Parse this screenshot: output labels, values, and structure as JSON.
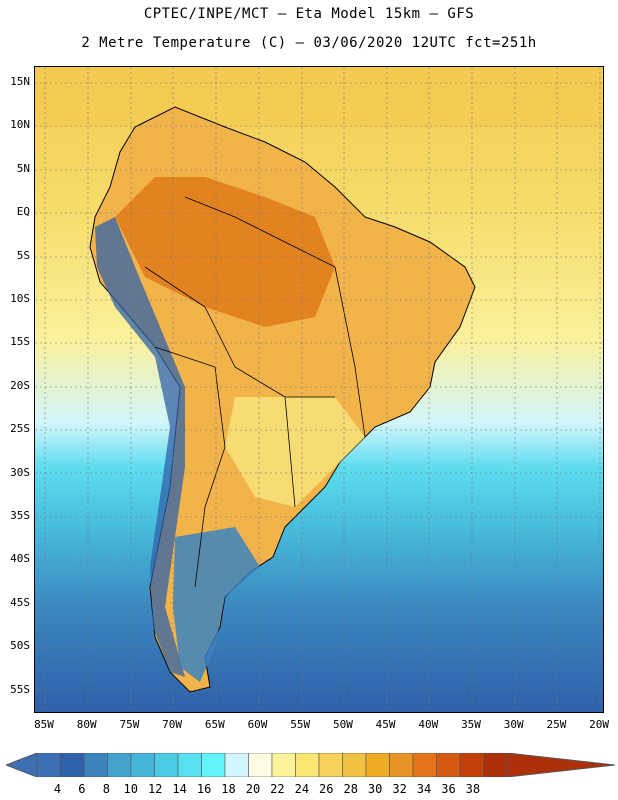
{
  "header": {
    "line1": "CPTEC/INPE/MCT –  Eta Model 15km – GFS",
    "line2": "2 Metre Temperature (C) – 03/06/2020 12UTC fct=251h"
  },
  "map": {
    "lat_labels": [
      "15N",
      "10N",
      "5N",
      "EQ",
      "5S",
      "10S",
      "15S",
      "20S",
      "25S",
      "30S",
      "35S",
      "40S",
      "45S",
      "50S",
      "55S"
    ],
    "lon_labels": [
      "85W",
      "80W",
      "75W",
      "70W",
      "65W",
      "60W",
      "55W",
      "50W",
      "45W",
      "40W",
      "35W",
      "30W",
      "25W",
      "20W"
    ]
  },
  "colorbar": {
    "labels": [
      "4",
      "6",
      "8",
      "10",
      "12",
      "14",
      "16",
      "18",
      "20",
      "22",
      "24",
      "26",
      "28",
      "30",
      "32",
      "34",
      "36",
      "38"
    ],
    "colors": [
      "#3c6fb4",
      "#2f62aa",
      "#3b84be",
      "#44a2cc",
      "#45b6d9",
      "#4dcbe4",
      "#57e0ef",
      "#62f4fb",
      "#d2f6fd",
      "#fffbe4",
      "#fdf39b",
      "#fbe673",
      "#f6d25c",
      "#f0c040",
      "#eeac24",
      "#e99225",
      "#e3741a",
      "#d85a12",
      "#c43f0b",
      "#ad300a"
    ],
    "under_color": "#3c6fb4",
    "over_color": "#ad300a"
  }
}
